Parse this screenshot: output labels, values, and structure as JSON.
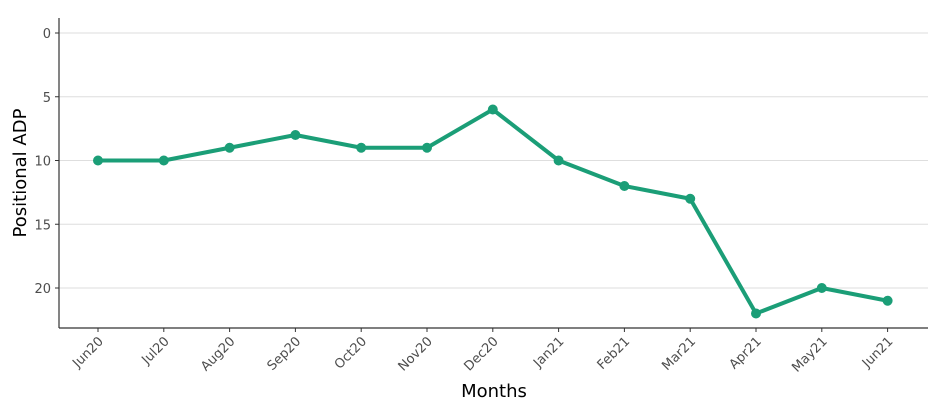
{
  "chart_data": {
    "type": "line",
    "title": "",
    "xlabel": "Months",
    "ylabel": "Positional ADP",
    "categories": [
      "Jun20",
      "Jul20",
      "Aug20",
      "Sep20",
      "Oct20",
      "Nov20",
      "Dec20",
      "Jan21",
      "Feb21",
      "Mar21",
      "Apr21",
      "May21",
      "Jun21"
    ],
    "series": [
      {
        "values": [
          10,
          10,
          9,
          8,
          9,
          9,
          6,
          10,
          12,
          13,
          22,
          20,
          21
        ]
      }
    ],
    "y_reversed": true,
    "ylim": [
      0,
      23
    ],
    "yticks": [
      0,
      5,
      10,
      15,
      20
    ],
    "grid": "horizontal",
    "colors": {
      "line": "#1b9e77"
    }
  }
}
